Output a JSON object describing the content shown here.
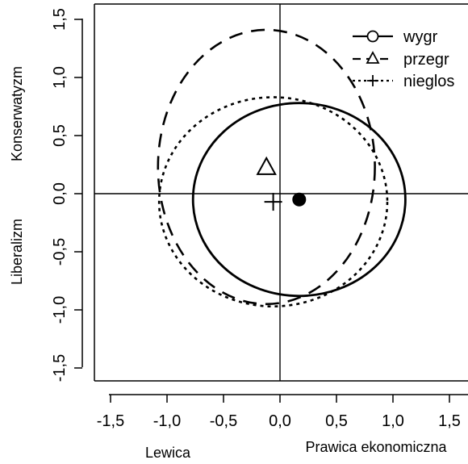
{
  "chart_data": {
    "type": "scatter",
    "x_ticks": [
      "-1,5",
      "-1,0",
      "-0,5",
      "0,0",
      "0,5",
      "1,0",
      "1,5"
    ],
    "y_ticks": [
      "-1,5",
      "-1,0",
      "-0,5",
      "0,0",
      "0,5",
      "1,0",
      "1,5"
    ],
    "x_tick_values": [
      -1.5,
      -1.0,
      -0.5,
      0.0,
      0.5,
      1.0,
      1.5
    ],
    "y_tick_values": [
      -1.5,
      -1.0,
      -0.5,
      0.0,
      0.5,
      1.0,
      1.5
    ],
    "xlim": [
      -1.7,
      1.6
    ],
    "ylim": [
      -1.62,
      1.62
    ],
    "x_label_left": "Lewica",
    "x_label_right": "Prawica ekonomiczna",
    "y_label_bottom": "Liberalizm",
    "y_label_top": "Konserwatyzm",
    "legend_position": "top-right",
    "series": [
      {
        "name": "wygr",
        "line": "solid",
        "marker": "circle",
        "point": {
          "x": 0.17,
          "y": -0.05
        },
        "ellipse": {
          "cx": 0.17,
          "cy": -0.05,
          "rx": 0.94,
          "ry": 0.83
        }
      },
      {
        "name": "przegr",
        "line": "dashed",
        "marker": "triangle",
        "point": {
          "x": -0.12,
          "y": 0.23
        },
        "ellipse": {
          "cx": -0.12,
          "cy": 0.23,
          "rx": 0.96,
          "ry": 1.18
        }
      },
      {
        "name": "nieglos",
        "line": "dotted",
        "marker": "plus",
        "point": {
          "x": -0.06,
          "y": -0.07
        },
        "ellipse": {
          "cx": -0.06,
          "cy": -0.07,
          "rx": 1.01,
          "ry": 0.9
        }
      }
    ]
  }
}
